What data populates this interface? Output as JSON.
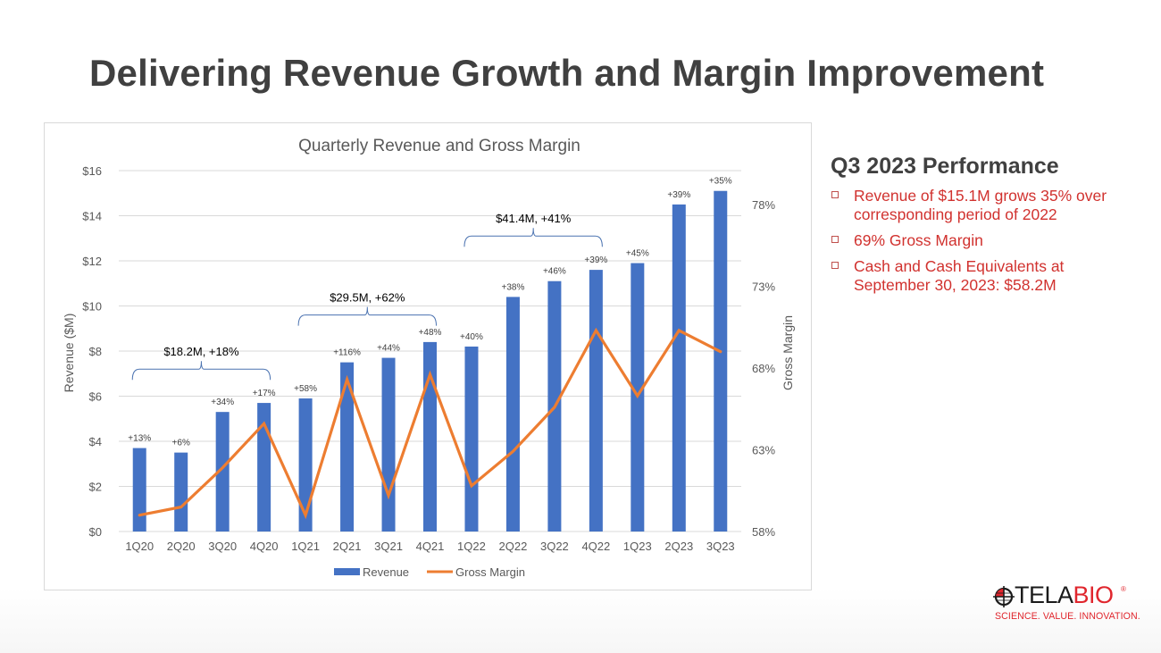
{
  "slide": {
    "title": "Delivering Revenue Growth and Margin Improvement"
  },
  "chart_data": {
    "type": "bar",
    "title": "Quarterly Revenue and Gross Margin",
    "xlabel": "",
    "ylabel": "Revenue ($M)",
    "y2label": "Gross Margin",
    "categories": [
      "1Q20",
      "2Q20",
      "3Q20",
      "4Q20",
      "1Q21",
      "2Q21",
      "3Q21",
      "4Q21",
      "1Q22",
      "2Q22",
      "3Q22",
      "4Q22",
      "1Q23",
      "2Q23",
      "3Q23"
    ],
    "series": [
      {
        "name": "Revenue",
        "type": "bar",
        "axis": "left",
        "color": "#4472c4",
        "values": [
          3.7,
          3.5,
          5.3,
          5.7,
          5.9,
          7.5,
          7.7,
          8.4,
          8.2,
          10.4,
          11.1,
          11.6,
          11.9,
          14.5,
          15.1
        ],
        "data_labels": [
          "+13%",
          "+6%",
          "+34%",
          "+17%",
          "+58%",
          "+116%",
          "+44%",
          "+48%",
          "+40%",
          "+38%",
          "+46%",
          "+39%",
          "+45%",
          "+39%",
          "+35%"
        ]
      },
      {
        "name": "Gross Margin",
        "type": "line",
        "axis": "right",
        "color": "#ed7d31",
        "values": [
          59.0,
          59.5,
          61.9,
          64.6,
          59.0,
          67.3,
          60.2,
          67.6,
          60.8,
          62.9,
          65.6,
          70.3,
          66.3,
          70.3,
          69.0
        ]
      }
    ],
    "ylim": [
      0,
      16
    ],
    "yticks": [
      0,
      2,
      4,
      6,
      8,
      10,
      12,
      14,
      16
    ],
    "ytick_labels": [
      "$0",
      "$2",
      "$4",
      "$6",
      "$8",
      "$10",
      "$12",
      "$14",
      "$16"
    ],
    "y2lim": [
      58,
      80
    ],
    "y2ticks": [
      58,
      63,
      68,
      73,
      78
    ],
    "y2tick_labels": [
      "58%",
      "63%",
      "68%",
      "73%",
      "78%"
    ],
    "grid": true,
    "legend": {
      "position": "bottom",
      "entries": [
        "Revenue",
        "Gross Margin"
      ]
    },
    "annotations": [
      {
        "text": "$18.2M, +18%",
        "from_category": "1Q20",
        "to_category": "4Q20",
        "value": 7.2
      },
      {
        "text": "$29.5M, +62%",
        "from_category": "1Q21",
        "to_category": "4Q21",
        "value": 9.6
      },
      {
        "text": "$41.4M, +41%",
        "from_category": "1Q22",
        "to_category": "4Q22",
        "value": 13.1
      }
    ]
  },
  "performance": {
    "title": "Q3 2023 Performance",
    "items": [
      "Revenue of $15.1M grows 35% over corresponding period of 2022",
      "69% Gross Margin",
      "Cash and Cash Equivalents at September 30, 2023: $58.2M"
    ]
  },
  "logo": {
    "brand_dark": "TELA",
    "brand_red": "BIO",
    "registered": "®",
    "tagline": "SCIENCE. VALUE. INNOVATION."
  },
  "colors": {
    "title": "#404040",
    "revenue_bar": "#4472c4",
    "gross_margin_line": "#ed7d31",
    "bullet_text": "#d1322f",
    "brand_red": "#e0262d"
  }
}
